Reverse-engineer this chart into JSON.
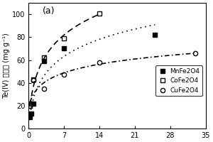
{
  "title": "(a)",
  "xlim": [
    0,
    35
  ],
  "ylim": [
    0.0,
    110.0
  ],
  "yticks": [
    0.0,
    20.0,
    40.0,
    60.0,
    80.0,
    100.0
  ],
  "xticks": [
    0,
    7,
    14,
    21,
    28,
    35
  ],
  "ylabel_line1": "Te(IV)",
  "ylabel_line2": "吸附量",
  "ylabel_line3": "(mg g⁻¹)",
  "MnFe2O4": {
    "x": [
      0.3,
      0.5,
      1,
      3,
      7,
      25
    ],
    "y": [
      10,
      13,
      22,
      59,
      70,
      82
    ],
    "label": "MnFe2O4",
    "marker": "s",
    "fillstyle": "full",
    "color": "black",
    "linestyle": "dotted"
  },
  "CoFe2O4": {
    "x": [
      0.3,
      0.5,
      1,
      3,
      7,
      14
    ],
    "y": [
      20,
      22,
      43,
      62,
      79,
      101
    ],
    "label": "CoFe2O4",
    "marker": "s",
    "fillstyle": "none",
    "color": "black",
    "linestyle": "dashed"
  },
  "CuFe2O4": {
    "x": [
      0.3,
      0.5,
      1,
      3,
      7,
      14,
      33
    ],
    "y": [
      20,
      22,
      42,
      35,
      47,
      58,
      66
    ],
    "label": "CuFe2O4",
    "marker": "o",
    "fillstyle": "none",
    "color": "black",
    "linestyle": "dashdot"
  },
  "background_color": "#ffffff",
  "legend_fontsize": 6.5,
  "axis_fontsize": 7,
  "title_fontsize": 9
}
